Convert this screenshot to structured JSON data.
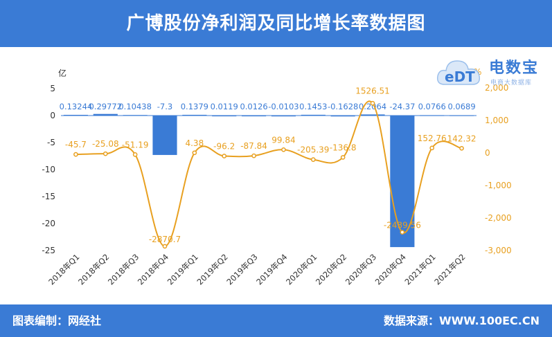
{
  "header": {
    "title": "广博股份净利润及同比增长率数据图"
  },
  "footer": {
    "left": "图表编制：网经社",
    "right": "数据来源：WWW.100EC.CN"
  },
  "logo": {
    "main": "电数宝",
    "sub": "电商大数据库",
    "mark": "eDT"
  },
  "colors": {
    "bar": "#3a7bd5",
    "line": "#e8a020",
    "header": "#3a7bd5",
    "axis_left": "#333333",
    "axis_right": "#e8a020"
  },
  "chart_data": {
    "type": "bar+line",
    "categories": [
      "2018年Q1",
      "2018年Q2",
      "2018年Q3",
      "2018年Q4",
      "2019年Q1",
      "2019年Q2",
      "2019年Q3",
      "2019年Q4",
      "2020年Q1",
      "2020年Q2",
      "2020年Q3",
      "2020年Q4",
      "2021年Q1",
      "2021年Q2"
    ],
    "left_axis": {
      "unit": "亿",
      "ylim": [
        -25,
        5
      ],
      "ticks": [
        5,
        0,
        -5,
        -10,
        -15,
        -20,
        -25
      ]
    },
    "right_axis": {
      "unit": "%",
      "ylim": [
        -3000,
        2000
      ],
      "ticks": [
        "2,000",
        "1,000",
        "0",
        "-1,000",
        "-2,000",
        "-3,000"
      ],
      "tick_values": [
        2000,
        1000,
        0,
        -1000,
        -2000,
        -3000
      ]
    },
    "series": [
      {
        "type": "bar",
        "axis": "left",
        "values": [
          0.13244,
          0.29772,
          0.10438,
          -7.3,
          0.1379,
          0.0119,
          0.0126,
          -0.0103,
          0.1453,
          -0.1628,
          0.2064,
          -24.37,
          0.0766,
          0.0689
        ],
        "labels": [
          "0.13244",
          "0.29772",
          "0.10438",
          "-7.3",
          "0.1379",
          "0.0119",
          "0.0126",
          "-0.0103",
          "0.1453",
          "-0.1628",
          "0.2064",
          "-24.37",
          "0.0766",
          "0.0689"
        ]
      },
      {
        "type": "line",
        "axis": "right",
        "values": [
          -45.7,
          -25.08,
          -51.19,
          -2870.7,
          4.38,
          -96.2,
          -87.84,
          99.84,
          -205.39,
          -136.8,
          1526.51,
          -2439.56,
          152.76,
          142.32
        ],
        "labels": [
          "-45.7",
          "-25.08",
          "-51.19",
          "-2870.7",
          "4.38",
          "-96.2",
          "-87.84",
          "99.84",
          "-205.39",
          "-136.8",
          "1526.51",
          "-2439.56",
          "152.76",
          "142.32"
        ]
      }
    ]
  }
}
